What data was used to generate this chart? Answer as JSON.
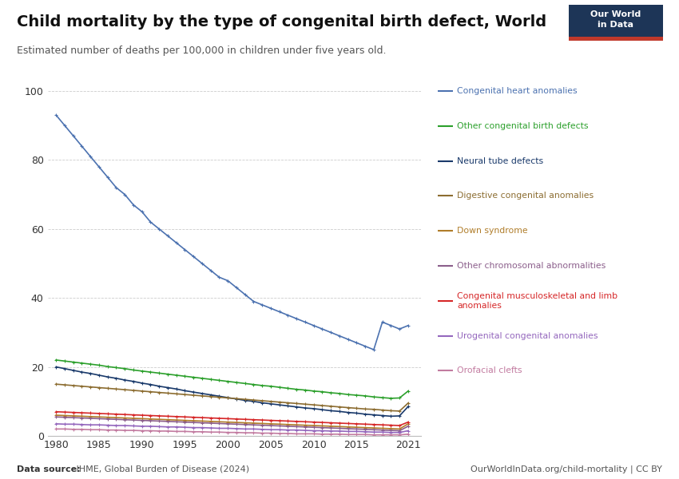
{
  "title": "Child mortality by the type of congenital birth defect, World",
  "subtitle": "Estimated number of deaths per 100,000 in children under five years old.",
  "source_bold": "Data source:",
  "source_rest": " IHME, Global Burden of Disease (2024)",
  "url": "OurWorldInData.org/child-mortality | CC BY",
  "years": [
    1980,
    1981,
    1982,
    1983,
    1984,
    1985,
    1986,
    1987,
    1988,
    1989,
    1990,
    1991,
    1992,
    1993,
    1994,
    1995,
    1996,
    1997,
    1998,
    1999,
    2000,
    2001,
    2002,
    2003,
    2004,
    2005,
    2006,
    2007,
    2008,
    2009,
    2010,
    2011,
    2012,
    2013,
    2014,
    2015,
    2016,
    2017,
    2018,
    2019,
    2020,
    2021
  ],
  "series": [
    {
      "label": "Congenital heart anomalies",
      "color": "#4c72b0",
      "values": [
        93,
        90,
        87,
        84,
        81,
        78,
        75,
        72,
        70,
        67,
        65,
        62,
        60,
        58,
        56,
        54,
        52,
        50,
        48,
        46,
        45,
        43,
        41,
        39,
        38,
        37,
        36,
        35,
        34,
        33,
        32,
        31,
        30,
        29,
        28,
        27,
        26,
        25,
        33,
        32,
        31,
        32
      ]
    },
    {
      "label": "Other congenital birth defects",
      "color": "#2ca02c",
      "values": [
        22,
        21.7,
        21.4,
        21.1,
        20.8,
        20.5,
        20.1,
        19.8,
        19.5,
        19.1,
        18.8,
        18.5,
        18.2,
        17.9,
        17.6,
        17.3,
        17.0,
        16.7,
        16.4,
        16.1,
        15.8,
        15.5,
        15.2,
        14.9,
        14.6,
        14.4,
        14.1,
        13.8,
        13.5,
        13.3,
        13.0,
        12.8,
        12.5,
        12.3,
        12.0,
        11.8,
        11.6,
        11.3,
        11.1,
        10.9,
        11.0,
        13.0
      ]
    },
    {
      "label": "Neural tube defects",
      "color": "#1a3a6b",
      "values": [
        20,
        19.5,
        19.0,
        18.5,
        18.1,
        17.6,
        17.1,
        16.7,
        16.2,
        15.8,
        15.3,
        14.9,
        14.4,
        14.0,
        13.6,
        13.1,
        12.7,
        12.3,
        11.9,
        11.5,
        11.1,
        10.7,
        10.3,
        10.0,
        9.6,
        9.3,
        9.0,
        8.7,
        8.4,
        8.1,
        7.9,
        7.6,
        7.3,
        7.1,
        6.8,
        6.6,
        6.3,
        6.1,
        5.9,
        5.7,
        5.8,
        8.5
      ]
    },
    {
      "label": "Digestive congenital anomalies",
      "color": "#8c6d31",
      "values": [
        15,
        14.8,
        14.6,
        14.4,
        14.2,
        14.0,
        13.8,
        13.6,
        13.4,
        13.2,
        13.0,
        12.8,
        12.6,
        12.4,
        12.2,
        12.0,
        11.8,
        11.6,
        11.4,
        11.2,
        11.0,
        10.8,
        10.6,
        10.4,
        10.2,
        10.0,
        9.8,
        9.6,
        9.4,
        9.2,
        9.0,
        8.8,
        8.6,
        8.4,
        8.2,
        8.0,
        7.8,
        7.7,
        7.5,
        7.3,
        7.2,
        9.5
      ]
    },
    {
      "label": "Down syndrome",
      "color": "#b07d2a",
      "values": [
        6.0,
        5.9,
        5.8,
        5.7,
        5.6,
        5.5,
        5.4,
        5.3,
        5.2,
        5.1,
        5.0,
        4.9,
        4.8,
        4.7,
        4.6,
        4.5,
        4.4,
        4.3,
        4.2,
        4.1,
        4.0,
        3.9,
        3.8,
        3.7,
        3.6,
        3.5,
        3.4,
        3.3,
        3.2,
        3.1,
        3.0,
        2.9,
        2.8,
        2.7,
        2.6,
        2.5,
        2.4,
        2.3,
        2.2,
        2.1,
        2.0,
        3.5
      ]
    },
    {
      "label": "Other chromosomal abnormalities",
      "color": "#8b5e8b",
      "values": [
        5.5,
        5.4,
        5.3,
        5.2,
        5.1,
        5.0,
        4.9,
        4.8,
        4.7,
        4.6,
        4.5,
        4.4,
        4.3,
        4.2,
        4.1,
        4.0,
        3.9,
        3.8,
        3.7,
        3.6,
        3.5,
        3.4,
        3.3,
        3.2,
        3.1,
        3.0,
        2.9,
        2.8,
        2.7,
        2.6,
        2.5,
        2.4,
        2.3,
        2.2,
        2.1,
        2.0,
        1.9,
        1.8,
        1.7,
        1.6,
        1.5,
        2.8
      ]
    },
    {
      "label": "Congenital musculoskeletal and limb anomalies",
      "color": "#d62728",
      "values": [
        7.0,
        6.9,
        6.8,
        6.7,
        6.6,
        6.5,
        6.4,
        6.3,
        6.2,
        6.1,
        6.0,
        5.9,
        5.8,
        5.7,
        5.6,
        5.5,
        5.4,
        5.3,
        5.2,
        5.1,
        5.0,
        4.9,
        4.8,
        4.7,
        4.6,
        4.5,
        4.4,
        4.3,
        4.2,
        4.1,
        4.0,
        3.9,
        3.8,
        3.7,
        3.6,
        3.5,
        3.4,
        3.3,
        3.2,
        3.1,
        3.0,
        4.0
      ]
    },
    {
      "label": "Urogenital congenital anomalies",
      "color": "#9467bd",
      "values": [
        3.5,
        3.4,
        3.4,
        3.3,
        3.2,
        3.2,
        3.1,
        3.0,
        3.0,
        2.9,
        2.8,
        2.8,
        2.7,
        2.6,
        2.6,
        2.5,
        2.4,
        2.4,
        2.3,
        2.2,
        2.2,
        2.1,
        2.0,
        2.0,
        1.9,
        1.8,
        1.8,
        1.7,
        1.7,
        1.6,
        1.5,
        1.5,
        1.4,
        1.4,
        1.3,
        1.3,
        1.2,
        1.1,
        1.1,
        1.0,
        1.0,
        1.5
      ]
    },
    {
      "label": "Orofacial clefts",
      "color": "#c27ba0",
      "values": [
        2.0,
        2.0,
        1.9,
        1.9,
        1.8,
        1.8,
        1.7,
        1.7,
        1.6,
        1.6,
        1.5,
        1.5,
        1.4,
        1.4,
        1.3,
        1.3,
        1.2,
        1.2,
        1.1,
        1.1,
        1.0,
        1.0,
        0.9,
        0.9,
        0.8,
        0.8,
        0.7,
        0.7,
        0.6,
        0.6,
        0.6,
        0.5,
        0.5,
        0.5,
        0.4,
        0.4,
        0.4,
        0.3,
        0.3,
        0.3,
        0.3,
        0.5
      ]
    }
  ],
  "ylim": [
    0,
    100
  ],
  "yticks": [
    0,
    20,
    40,
    60,
    80,
    100
  ],
  "xticks": [
    1980,
    1985,
    1990,
    1995,
    2000,
    2005,
    2010,
    2015,
    2021
  ],
  "background_color": "#ffffff",
  "grid_color": "#cccccc"
}
